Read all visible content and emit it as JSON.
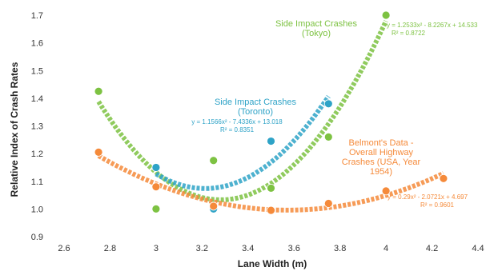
{
  "chart_data": {
    "type": "scatter",
    "xlabel": "Lane Width (m)",
    "ylabel": "Relative Index of Crash Rates",
    "xlim": [
      2.6,
      4.4
    ],
    "ylim": [
      0.9,
      1.7
    ],
    "x_ticks": [
      "2.6",
      "2.8",
      "3",
      "3.2",
      "3.4",
      "3.6",
      "3.8",
      "4",
      "4.2",
      "4.4"
    ],
    "y_ticks": [
      "0.9",
      "1.0",
      "1.1",
      "1.2",
      "1.3",
      "1.4",
      "1.5",
      "1.6",
      "1.7"
    ],
    "grid": false,
    "series": [
      {
        "key": "tokyo",
        "label_lines": [
          "Side Impact Crashes",
          "(Tokyo)"
        ],
        "color": "#7dc242",
        "points": [
          [
            2.75,
            1.425
          ],
          [
            3.0,
            1.0
          ],
          [
            3.25,
            1.175
          ],
          [
            3.5,
            1.075
          ],
          [
            3.75,
            1.26
          ],
          [
            4.0,
            1.7
          ]
        ],
        "trend": {
          "equation": "y = 1.2533x² - 8.2267x + 14.533",
          "r2": "R² = 0.8722",
          "coeffs": [
            1.2533,
            -8.2267,
            14.533
          ],
          "range": [
            2.75,
            4.0
          ]
        }
      },
      {
        "key": "toronto",
        "label_lines": [
          "Side Impact Crashes",
          "(Toronto)"
        ],
        "color": "#2ea3c7",
        "points": [
          [
            3.0,
            1.15
          ],
          [
            3.25,
            1.0
          ],
          [
            3.5,
            1.245
          ],
          [
            3.75,
            1.38
          ]
        ],
        "trend": {
          "equation": "y = 1.1566x² - 7.4336x + 13.018",
          "r2": "R² = 0.8351",
          "coeffs": [
            1.1566,
            -7.4336,
            13.018
          ],
          "range": [
            3.0,
            3.75
          ]
        }
      },
      {
        "key": "belmont",
        "label_lines": [
          "Belmont's Data -",
          "Overall Highway",
          "Crashes (USA, Year",
          "1954)"
        ],
        "color": "#f58a3a",
        "points": [
          [
            2.75,
            1.205
          ],
          [
            3.0,
            1.08
          ],
          [
            3.25,
            1.01
          ],
          [
            3.5,
            0.995
          ],
          [
            3.75,
            1.02
          ],
          [
            4.0,
            1.065
          ],
          [
            4.25,
            1.11
          ]
        ],
        "trend": {
          "equation": "y = 0.29x² - 2.0721x + 4.697",
          "r2": "R² = 0.9601",
          "coeffs": [
            0.29,
            -2.0721,
            4.697
          ],
          "range": [
            2.75,
            4.25
          ]
        }
      }
    ]
  }
}
